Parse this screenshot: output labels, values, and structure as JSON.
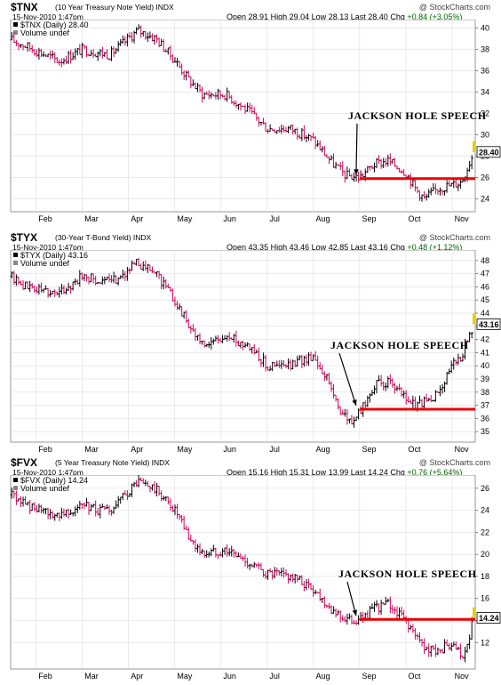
{
  "watermark": "@ StockCharts.com",
  "colors": {
    "up": "#000000",
    "down": "#d0005a",
    "line": "#ee0000",
    "last": "#e0d000",
    "chg": "#006400"
  },
  "panels": [
    {
      "symbol": "$TNX",
      "description": "(10 Year Treasury Note Yield) INDX",
      "date": "15-Nov-2010 1:47pm",
      "open_label": "Open",
      "open": "28.91",
      "high_label": "High",
      "high": "29.04",
      "low_label": "Low",
      "low": "28.13",
      "last_label": "Last",
      "last": "28.40",
      "chg_label": "Chg",
      "chg": "+0.84 (+3.05%)",
      "legend": "$TNX (Daily) 28.40",
      "volume_label": "Volume undef",
      "annotation": "JACKSON HOLE SPEECH"
    },
    {
      "symbol": "$TYX",
      "description": "(30-Year T-Bond Yield) INDX",
      "date": "15-Nov-2010 1:47pm",
      "open_label": "Open",
      "open": "43.35",
      "high_label": "High",
      "high": "43.46",
      "low_label": "Low",
      "low": "42.85",
      "last_label": "Last",
      "last": "43.16",
      "chg_label": "Chg",
      "chg": "+0.48 (+1.12%)",
      "legend": "$TYX (Daily) 43.16",
      "volume_label": "Volume undef",
      "annotation": "JACKSON HOLE SPEECH"
    },
    {
      "symbol": "$FVX",
      "description": "(5 Year Treasury Note Yield) INDX",
      "date": "15-Nov-2010 1:47pm",
      "open_label": "Open",
      "open": "15.16",
      "high_label": "High",
      "high": "15.31",
      "low_label": "Low",
      "low": "13.99",
      "last_label": "Last",
      "last": "14.24",
      "chg_label": "Chg",
      "chg": "+0.76 (+5.64%)",
      "legend": "$FVX (Daily) 14.24",
      "volume_label": "Volume undef",
      "annotation": "JACKSON HOLE SPEECH"
    }
  ],
  "chart_data": [
    {
      "type": "ohlc",
      "series": "$TNX",
      "x_ticks": [
        "Feb",
        "Mar",
        "Apr",
        "May",
        "Jun",
        "Jul",
        "Aug",
        "Sep",
        "Oct",
        "Nov"
      ],
      "x_domain_months": [
        0.45,
        10.5
      ],
      "y_ticks": [
        24,
        26,
        28,
        30,
        32,
        34,
        36,
        38,
        40
      ],
      "ylim": [
        22.8,
        40.8
      ],
      "last_value": 28.4,
      "support_line": {
        "value": 25.9,
        "from_month": 8.0
      },
      "keypoints": [
        [
          0.45,
          38.9
        ],
        [
          0.8,
          38.3
        ],
        [
          1.5,
          36.9
        ],
        [
          2.0,
          38.0
        ],
        [
          2.6,
          37.5
        ],
        [
          3.2,
          39.8
        ],
        [
          3.6,
          39.0
        ],
        [
          4.0,
          37.0
        ],
        [
          4.3,
          35.2
        ],
        [
          4.6,
          33.8
        ],
        [
          5.1,
          33.8
        ],
        [
          5.6,
          32.2
        ],
        [
          6.0,
          30.6
        ],
        [
          6.5,
          30.6
        ],
        [
          7.0,
          29.5
        ],
        [
          7.4,
          27.4
        ],
        [
          7.7,
          26.2
        ],
        [
          8.0,
          26.0
        ],
        [
          8.3,
          27.2
        ],
        [
          8.6,
          27.6
        ],
        [
          9.0,
          26.5
        ],
        [
          9.2,
          25.0
        ],
        [
          9.4,
          24.0
        ],
        [
          9.7,
          25.0
        ],
        [
          10.0,
          25.3
        ],
        [
          10.2,
          25.6
        ],
        [
          10.45,
          28.2
        ]
      ]
    },
    {
      "type": "ohlc",
      "series": "$TYX",
      "x_ticks": [
        "Feb",
        "Mar",
        "Apr",
        "May",
        "Jun",
        "Jul",
        "Aug",
        "Sep",
        "Oct",
        "Nov"
      ],
      "x_domain_months": [
        0.45,
        10.5
      ],
      "y_ticks": [
        35,
        36,
        37,
        38,
        39,
        40,
        41,
        42,
        43,
        44,
        45,
        46,
        47,
        48
      ],
      "ylim": [
        34.2,
        48.8
      ],
      "last_value": 43.16,
      "support_line": {
        "value": 36.7,
        "from_month": 8.0
      },
      "keypoints": [
        [
          0.45,
          46.8
        ],
        [
          0.8,
          46.0
        ],
        [
          1.5,
          45.5
        ],
        [
          2.0,
          46.8
        ],
        [
          2.6,
          46.3
        ],
        [
          3.2,
          47.8
        ],
        [
          3.6,
          47.0
        ],
        [
          4.0,
          45.0
        ],
        [
          4.3,
          43.2
        ],
        [
          4.6,
          41.5
        ],
        [
          5.1,
          42.2
        ],
        [
          5.6,
          41.6
        ],
        [
          6.0,
          40.0
        ],
        [
          6.5,
          40.0
        ],
        [
          7.0,
          40.8
        ],
        [
          7.3,
          39.0
        ],
        [
          7.6,
          36.5
        ],
        [
          7.8,
          35.7
        ],
        [
          8.0,
          36.4
        ],
        [
          8.3,
          38.5
        ],
        [
          8.6,
          38.8
        ],
        [
          8.9,
          37.8
        ],
        [
          9.2,
          37.0
        ],
        [
          9.6,
          37.5
        ],
        [
          10.0,
          40.0
        ],
        [
          10.2,
          40.8
        ],
        [
          10.45,
          43.0
        ]
      ]
    },
    {
      "type": "ohlc",
      "series": "$FVX",
      "x_ticks": [
        "Feb",
        "Mar",
        "Apr",
        "May",
        "Jun",
        "Jul",
        "Aug",
        "Sep",
        "Oct",
        "Nov"
      ],
      "x_domain_months": [
        0.45,
        10.5
      ],
      "y_ticks": [
        12,
        14,
        16,
        18,
        20,
        22,
        24,
        26
      ],
      "ylim": [
        9.6,
        27.2
      ],
      "last_value": 14.24,
      "support_line": {
        "value": 14.1,
        "from_month": 8.0
      },
      "keypoints": [
        [
          0.45,
          25.4
        ],
        [
          0.8,
          24.5
        ],
        [
          1.3,
          23.5
        ],
        [
          2.0,
          24.4
        ],
        [
          2.6,
          23.8
        ],
        [
          3.2,
          26.6
        ],
        [
          3.6,
          25.8
        ],
        [
          4.0,
          24.0
        ],
        [
          4.3,
          21.5
        ],
        [
          4.6,
          20.0
        ],
        [
          5.1,
          20.4
        ],
        [
          5.6,
          19.2
        ],
        [
          6.0,
          18.2
        ],
        [
          6.5,
          18.0
        ],
        [
          7.0,
          16.8
        ],
        [
          7.4,
          15.0
        ],
        [
          7.7,
          14.0
        ],
        [
          8.0,
          14.0
        ],
        [
          8.3,
          15.0
        ],
        [
          8.6,
          15.5
        ],
        [
          9.0,
          14.0
        ],
        [
          9.2,
          12.5
        ],
        [
          9.5,
          11.2
        ],
        [
          9.9,
          11.6
        ],
        [
          10.1,
          11.3
        ],
        [
          10.25,
          10.3
        ],
        [
          10.45,
          14.1
        ]
      ]
    }
  ]
}
